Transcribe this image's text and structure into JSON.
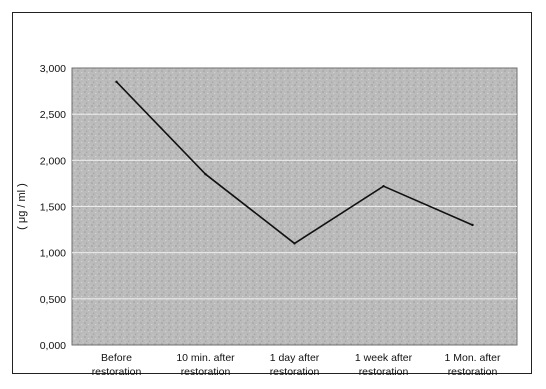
{
  "chart_data": {
    "type": "line",
    "categories": [
      [
        "Before",
        "restoration"
      ],
      [
        "10 min. after",
        "restoration"
      ],
      [
        "1 day after",
        "restoration"
      ],
      [
        "1 week after",
        "restoration"
      ],
      [
        "1 Mon. after",
        "restoration"
      ]
    ],
    "series": [
      {
        "values": [
          2.85,
          1.85,
          1.1,
          1.72,
          1.3
        ]
      }
    ],
    "ylabel": "( μg / ml )",
    "ylim": [
      0,
      3.0
    ],
    "yticks": [
      0,
      0.5,
      1.0,
      1.5,
      2.0,
      2.5,
      3.0
    ],
    "ytick_labels": [
      "0,000",
      "0,500",
      "1,000",
      "1,500",
      "2,000",
      "2,500",
      "3,000"
    ],
    "grid": true,
    "legend": "none",
    "colors": {
      "plot_background": "#b9b9b9",
      "line": "#111111",
      "grid": "#f2f2f2"
    }
  }
}
